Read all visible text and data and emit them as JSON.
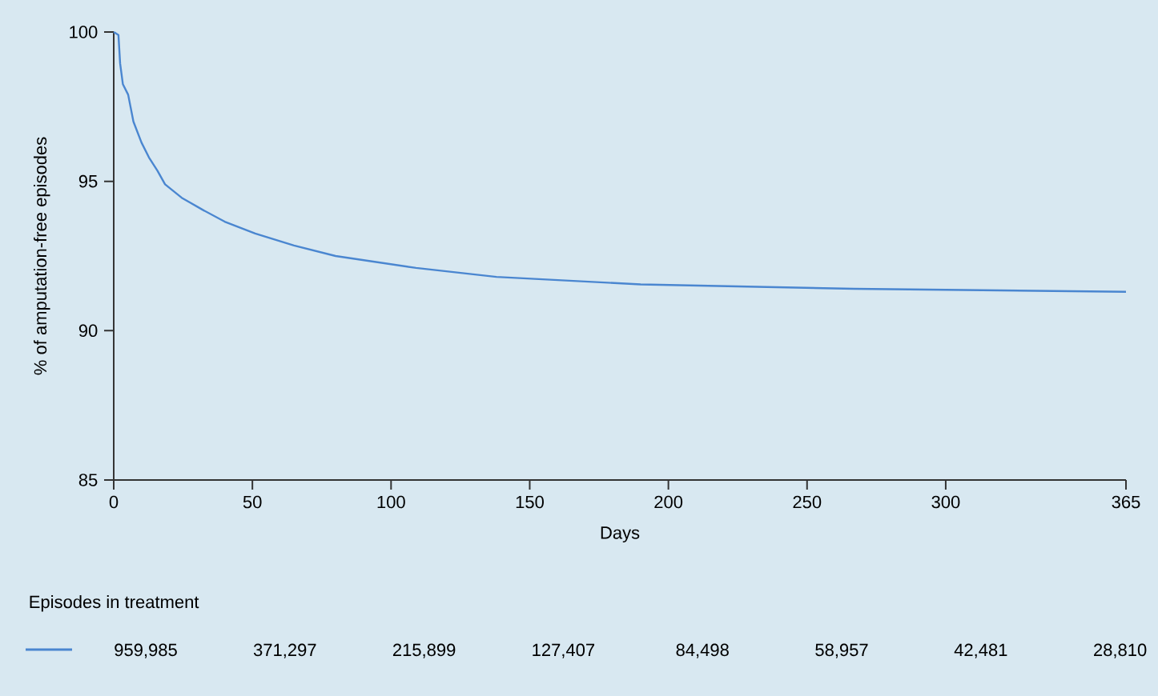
{
  "chart_data": {
    "type": "line",
    "xlabel": "Days",
    "ylabel": "% of amputation-free episodes",
    "legend_title": "Episodes in treatment",
    "xlim": [
      0,
      365
    ],
    "ylim": [
      85,
      100
    ],
    "xticks": [
      0,
      50,
      100,
      150,
      200,
      250,
      300,
      365
    ],
    "yticks": [
      85,
      90,
      95,
      100
    ],
    "grid": false,
    "series": [
      {
        "color": "#4a86d0",
        "x": [
          0,
          1.7,
          2.3,
          3.3,
          5.2,
          7.1,
          10,
          12.7,
          15.8,
          18.5,
          24.5,
          32,
          40,
          51,
          65,
          80,
          109,
          138,
          190,
          267,
          365
        ],
        "values": [
          100,
          99.9,
          98.95,
          98.25,
          97.9,
          97.0,
          96.3,
          95.8,
          95.35,
          94.9,
          94.45,
          94.05,
          93.65,
          93.25,
          92.85,
          92.5,
          92.1,
          91.8,
          91.55,
          91.4,
          91.3
        ]
      }
    ],
    "annotations": [
      "959,985",
      "371,297",
      "215,899",
      "127,407",
      "84,498",
      "58,957",
      "42,481",
      "28,810"
    ]
  }
}
